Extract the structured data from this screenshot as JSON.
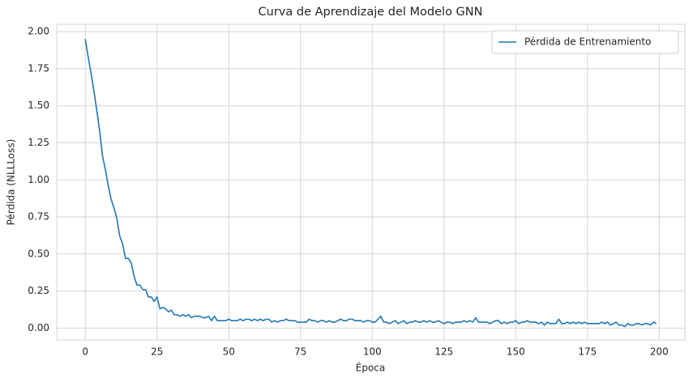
{
  "chart_data": {
    "type": "line",
    "title": "Curva de Aprendizaje del Modelo GNN",
    "x_label": "Época",
    "y_label": "Pérdida (NLLLoss)",
    "x": [
      0,
      1,
      2,
      3,
      4,
      5,
      6,
      7,
      8,
      9,
      10,
      11,
      12,
      13,
      14,
      15,
      16,
      17,
      18,
      19,
      20,
      21,
      22,
      23,
      24,
      25,
      26,
      27,
      28,
      29,
      30,
      31,
      32,
      33,
      34,
      35,
      36,
      37,
      38,
      39,
      40,
      41,
      42,
      43,
      44,
      45,
      46,
      47,
      48,
      49,
      50,
      51,
      52,
      53,
      54,
      55,
      56,
      57,
      58,
      59,
      60,
      61,
      62,
      63,
      64,
      65,
      66,
      67,
      68,
      69,
      70,
      71,
      72,
      73,
      74,
      75,
      76,
      77,
      78,
      79,
      80,
      81,
      82,
      83,
      84,
      85,
      86,
      87,
      88,
      89,
      90,
      91,
      92,
      93,
      94,
      95,
      96,
      97,
      98,
      99,
      100,
      101,
      102,
      103,
      104,
      105,
      106,
      107,
      108,
      109,
      110,
      111,
      112,
      113,
      114,
      115,
      116,
      117,
      118,
      119,
      120,
      121,
      122,
      123,
      124,
      125,
      126,
      127,
      128,
      129,
      130,
      131,
      132,
      133,
      134,
      135,
      136,
      137,
      138,
      139,
      140,
      141,
      142,
      143,
      144,
      145,
      146,
      147,
      148,
      149,
      150,
      151,
      152,
      153,
      154,
      155,
      156,
      157,
      158,
      159,
      160,
      161,
      162,
      163,
      164,
      165,
      166,
      167,
      168,
      169,
      170,
      171,
      172,
      173,
      174,
      175,
      176,
      177,
      178,
      179,
      180,
      181,
      182,
      183,
      184,
      185,
      186,
      187,
      188,
      189,
      190,
      191,
      192,
      193,
      194,
      195,
      196,
      197,
      198,
      199
    ],
    "series": [
      {
        "name": "Pérdida de Entrenamiento",
        "color": "#1f77b4",
        "values": [
          1.95,
          1.83,
          1.72,
          1.6,
          1.47,
          1.33,
          1.16,
          1.07,
          0.96,
          0.87,
          0.81,
          0.74,
          0.62,
          0.57,
          0.47,
          0.47,
          0.44,
          0.35,
          0.29,
          0.29,
          0.26,
          0.26,
          0.21,
          0.21,
          0.18,
          0.21,
          0.13,
          0.14,
          0.13,
          0.11,
          0.12,
          0.09,
          0.09,
          0.08,
          0.09,
          0.08,
          0.09,
          0.07,
          0.08,
          0.08,
          0.08,
          0.07,
          0.07,
          0.08,
          0.05,
          0.08,
          0.05,
          0.05,
          0.05,
          0.05,
          0.06,
          0.05,
          0.05,
          0.05,
          0.06,
          0.05,
          0.06,
          0.06,
          0.05,
          0.06,
          0.05,
          0.06,
          0.05,
          0.06,
          0.06,
          0.04,
          0.05,
          0.04,
          0.05,
          0.05,
          0.06,
          0.05,
          0.05,
          0.05,
          0.04,
          0.04,
          0.04,
          0.04,
          0.06,
          0.05,
          0.05,
          0.04,
          0.05,
          0.05,
          0.04,
          0.05,
          0.04,
          0.04,
          0.05,
          0.06,
          0.05,
          0.05,
          0.06,
          0.06,
          0.05,
          0.05,
          0.05,
          0.04,
          0.05,
          0.05,
          0.04,
          0.04,
          0.06,
          0.08,
          0.04,
          0.04,
          0.03,
          0.04,
          0.05,
          0.03,
          0.04,
          0.05,
          0.03,
          0.04,
          0.04,
          0.05,
          0.04,
          0.04,
          0.05,
          0.04,
          0.05,
          0.04,
          0.04,
          0.05,
          0.04,
          0.03,
          0.04,
          0.04,
          0.03,
          0.04,
          0.04,
          0.04,
          0.05,
          0.04,
          0.05,
          0.04,
          0.07,
          0.04,
          0.04,
          0.04,
          0.04,
          0.03,
          0.04,
          0.05,
          0.05,
          0.03,
          0.04,
          0.03,
          0.04,
          0.04,
          0.05,
          0.03,
          0.04,
          0.04,
          0.05,
          0.04,
          0.04,
          0.04,
          0.03,
          0.04,
          0.02,
          0.04,
          0.03,
          0.03,
          0.03,
          0.06,
          0.03,
          0.03,
          0.04,
          0.03,
          0.04,
          0.03,
          0.04,
          0.03,
          0.04,
          0.03,
          0.03,
          0.03,
          0.03,
          0.03,
          0.04,
          0.03,
          0.04,
          0.02,
          0.03,
          0.04,
          0.02,
          0.02,
          0.01,
          0.03,
          0.02,
          0.02,
          0.03,
          0.03,
          0.02,
          0.03,
          0.03,
          0.02,
          0.04,
          0.03
        ]
      }
    ],
    "xlim": [
      -9.95,
      208.95
    ],
    "xticks": [
      0,
      25,
      50,
      75,
      100,
      125,
      150,
      175,
      200
    ],
    "ylim": [
      -0.08,
      2.05
    ],
    "yticks": [
      {
        "value": 0,
        "label": "0.00"
      },
      {
        "value": 0.25,
        "label": "0.25"
      },
      {
        "value": 0.5,
        "label": "0.50"
      },
      {
        "value": 0.75,
        "label": "0.75"
      },
      {
        "value": 1,
        "label": "1.00"
      },
      {
        "value": 1.25,
        "label": "1.25"
      },
      {
        "value": 1.5,
        "label": "1.50"
      },
      {
        "value": 1.75,
        "label": "1.75"
      },
      {
        "value": 2,
        "label": "2.00"
      }
    ],
    "grid": true,
    "legend": "upper right"
  }
}
